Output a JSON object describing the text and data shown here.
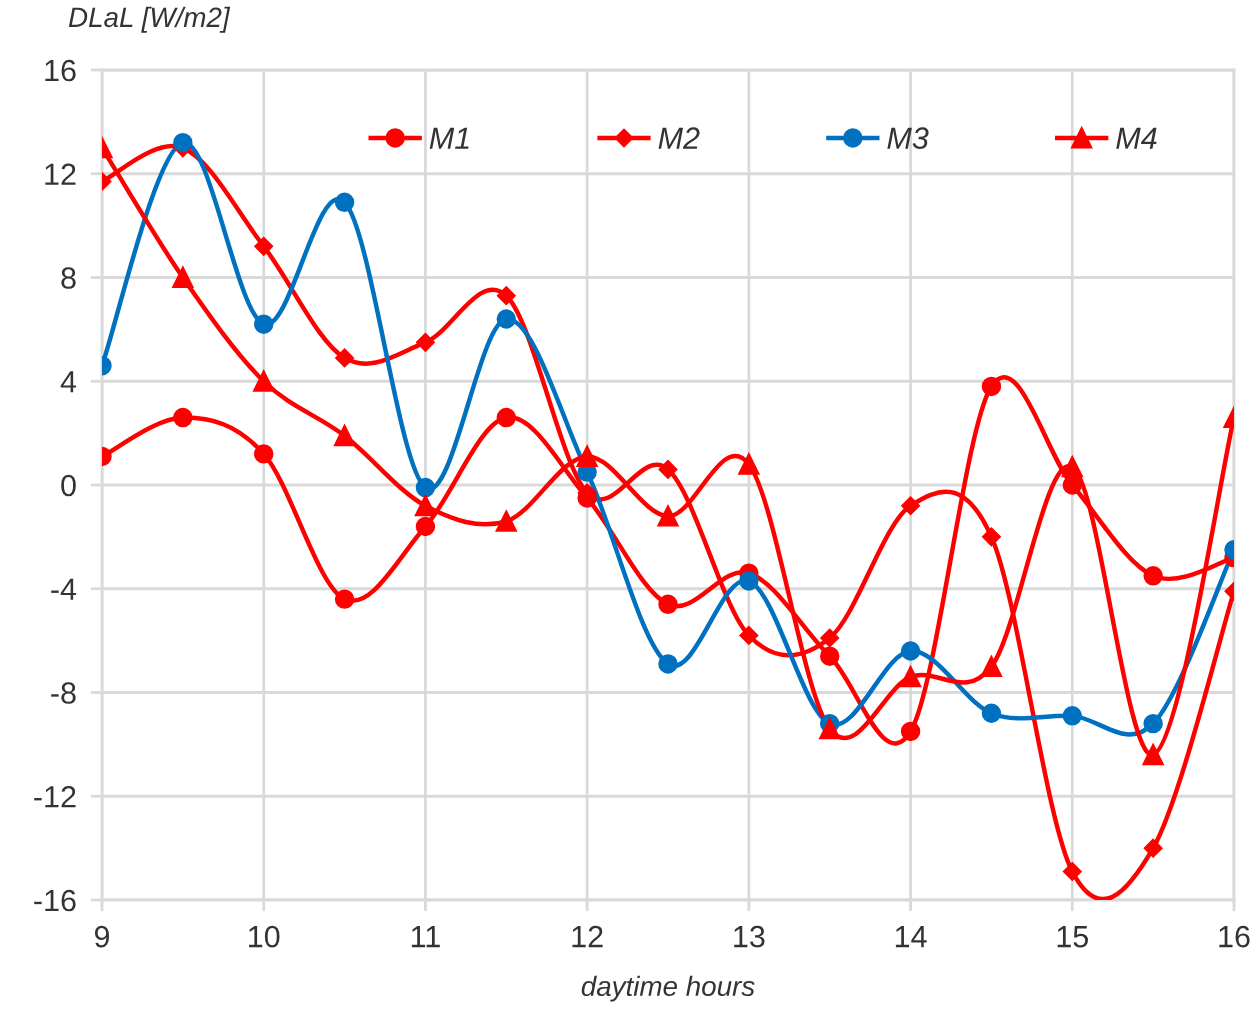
{
  "chart_data": {
    "type": "line",
    "xlabel": "daytime hours",
    "ylabel": "DLaL [W/m2]",
    "x": [
      9,
      9.5,
      10,
      10.5,
      11,
      11.5,
      12,
      12.5,
      13,
      13.5,
      14,
      14.5,
      15,
      15.5,
      16
    ],
    "series": [
      {
        "name": "M1",
        "color": "#ff0000",
        "marker": "circle",
        "values": [
          1.1,
          2.6,
          1.2,
          -4.4,
          -1.6,
          2.6,
          -0.5,
          -4.6,
          -3.4,
          -6.6,
          -9.5,
          3.8,
          0.0,
          -3.5,
          -2.8
        ]
      },
      {
        "name": "M2",
        "color": "#ff0000",
        "marker": "diamond",
        "values": [
          11.7,
          13.0,
          9.2,
          4.9,
          5.5,
          7.3,
          -0.3,
          0.6,
          -5.8,
          -5.9,
          -0.8,
          -2.0,
          -14.9,
          -14.0,
          -4.1
        ]
      },
      {
        "name": "M3",
        "color": "#0070c0",
        "marker": "circle",
        "values": [
          4.6,
          13.2,
          6.2,
          10.9,
          -0.1,
          6.4,
          0.5,
          -6.9,
          -3.7,
          -9.2,
          -6.4,
          -8.8,
          -8.9,
          -9.2,
          -2.5
        ]
      },
      {
        "name": "M4",
        "color": "#ff0000",
        "marker": "triangle",
        "values": [
          13.0,
          8.0,
          4.0,
          1.9,
          -0.8,
          -1.4,
          1.1,
          -1.2,
          0.8,
          -9.4,
          -7.4,
          -7.0,
          0.7,
          -10.4,
          2.6
        ]
      }
    ],
    "xlim": [
      9,
      16
    ],
    "xticks": [
      9,
      10,
      11,
      12,
      13,
      14,
      15,
      16
    ],
    "ylim": [
      -16,
      16
    ],
    "yticks": [
      -16,
      -12,
      -8,
      -4,
      0,
      4,
      8,
      12,
      16
    ],
    "grid": true,
    "legend": "top",
    "line_style": "solid"
  }
}
